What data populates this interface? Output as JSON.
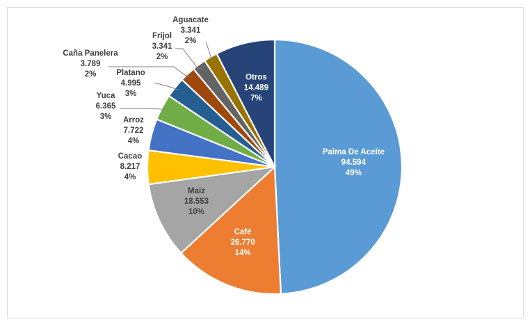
{
  "chart_data": {
    "type": "pie",
    "slices": [
      {
        "name": "Palma De Aceite",
        "value_text": "94.594",
        "pct_text": "49%",
        "value": 94594,
        "color": "#5b9bd5",
        "text": "light"
      },
      {
        "name": "Café",
        "value_text": "26.770",
        "pct_text": "14%",
        "value": 26770,
        "color": "#ed7d31",
        "text": "light"
      },
      {
        "name": "Maiz",
        "value_text": "18.553",
        "pct_text": "10%",
        "value": 18553,
        "color": "#a5a5a5",
        "text": "dark"
      },
      {
        "name": "Cacao",
        "value_text": "8.217",
        "pct_text": "4%",
        "value": 8217,
        "color": "#ffc000",
        "text": "dark"
      },
      {
        "name": "Arroz",
        "value_text": "7.722",
        "pct_text": "4%",
        "value": 7722,
        "color": "#4472c4",
        "text": "dark"
      },
      {
        "name": "Yuca",
        "value_text": "6.365",
        "pct_text": "3%",
        "value": 6365,
        "color": "#70ad47",
        "text": "dark"
      },
      {
        "name": "Platano",
        "value_text": "4.995",
        "pct_text": "3%",
        "value": 4995,
        "color": "#255e91",
        "text": "dark"
      },
      {
        "name": "Caña Panelera",
        "value_text": "3.789",
        "pct_text": "2%",
        "value": 3789,
        "color": "#9e480e",
        "text": "dark"
      },
      {
        "name": "Frijol",
        "value_text": "3.341",
        "pct_text": "2%",
        "value": 3341,
        "color": "#636363",
        "text": "dark"
      },
      {
        "name": "Aguacate",
        "value_text": "3.341",
        "pct_text": "2%",
        "value": 3341,
        "color": "#997300",
        "text": "dark"
      },
      {
        "name": "Otros",
        "value_text": "14.489",
        "pct_text": "7%",
        "value": 14489,
        "color": "#264478",
        "text": "light"
      }
    ]
  }
}
